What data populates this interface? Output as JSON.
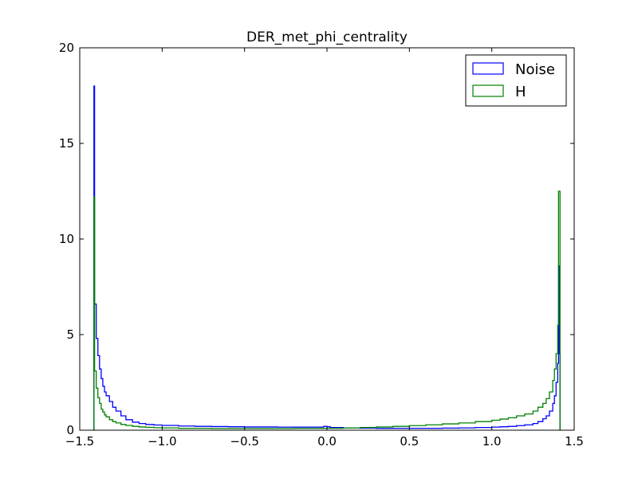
{
  "chart_data": {
    "type": "line",
    "title": "DER_met_phi_centrality",
    "xlabel": "",
    "ylabel": "",
    "xlim": [
      -1.5,
      1.5
    ],
    "ylim": [
      0,
      20
    ],
    "x_ticks": [
      -1.5,
      -1.0,
      -0.5,
      0.0,
      0.5,
      1.0,
      1.5
    ],
    "x_tick_labels": [
      "−1.5",
      "−1.0",
      "−0.5",
      "0.0",
      "0.5",
      "1.0",
      "1.5"
    ],
    "y_ticks": [
      0,
      5,
      10,
      15,
      20
    ],
    "y_tick_labels": [
      "0",
      "5",
      "10",
      "15",
      "20"
    ],
    "grid": false,
    "legend_position": "top-right",
    "histogram_style": "step",
    "series": [
      {
        "name": "Noise",
        "color": "#0000ff",
        "x": [
          -1.414,
          -1.41,
          -1.4,
          -1.39,
          -1.38,
          -1.37,
          -1.36,
          -1.35,
          -1.34,
          -1.32,
          -1.3,
          -1.28,
          -1.25,
          -1.22,
          -1.18,
          -1.14,
          -1.1,
          -1.05,
          -1.0,
          -0.9,
          -0.8,
          -0.7,
          -0.6,
          -0.5,
          -0.4,
          -0.3,
          -0.2,
          -0.1,
          -0.02,
          0.0,
          0.02,
          0.1,
          0.2,
          0.3,
          0.4,
          0.5,
          0.6,
          0.7,
          0.8,
          0.9,
          1.0,
          1.05,
          1.1,
          1.15,
          1.2,
          1.25,
          1.28,
          1.31,
          1.33,
          1.35,
          1.37,
          1.38,
          1.39,
          1.4,
          1.405,
          1.41,
          1.414
        ],
        "y": [
          18.0,
          6.6,
          4.8,
          3.9,
          3.2,
          2.7,
          2.3,
          2.0,
          1.8,
          1.5,
          1.2,
          1.0,
          0.75,
          0.55,
          0.42,
          0.35,
          0.3,
          0.27,
          0.25,
          0.22,
          0.2,
          0.19,
          0.18,
          0.17,
          0.17,
          0.16,
          0.16,
          0.16,
          0.2,
          0.18,
          0.14,
          0.12,
          0.11,
          0.1,
          0.1,
          0.1,
          0.1,
          0.11,
          0.12,
          0.14,
          0.16,
          0.18,
          0.2,
          0.24,
          0.28,
          0.35,
          0.45,
          0.6,
          0.75,
          1.0,
          1.4,
          1.8,
          2.5,
          3.5,
          8.6,
          4.0,
          0.0
        ]
      },
      {
        "name": "H",
        "color": "#008000",
        "x": [
          -1.414,
          -1.41,
          -1.4,
          -1.39,
          -1.38,
          -1.37,
          -1.36,
          -1.35,
          -1.34,
          -1.32,
          -1.3,
          -1.28,
          -1.25,
          -1.22,
          -1.18,
          -1.14,
          -1.1,
          -1.05,
          -1.0,
          -0.9,
          -0.8,
          -0.7,
          -0.6,
          -0.5,
          -0.4,
          -0.3,
          -0.2,
          -0.1,
          0.0,
          0.1,
          0.2,
          0.3,
          0.4,
          0.5,
          0.6,
          0.7,
          0.8,
          0.9,
          1.0,
          1.05,
          1.1,
          1.15,
          1.2,
          1.25,
          1.28,
          1.31,
          1.33,
          1.35,
          1.37,
          1.38,
          1.39,
          1.4,
          1.405,
          1.41,
          1.414
        ],
        "y": [
          12.2,
          3.1,
          2.2,
          1.7,
          1.4,
          1.1,
          0.95,
          0.8,
          0.7,
          0.55,
          0.45,
          0.38,
          0.3,
          0.25,
          0.2,
          0.17,
          0.15,
          0.13,
          0.12,
          0.1,
          0.1,
          0.09,
          0.09,
          0.09,
          0.09,
          0.09,
          0.1,
          0.1,
          0.1,
          0.12,
          0.14,
          0.17,
          0.2,
          0.24,
          0.28,
          0.33,
          0.38,
          0.45,
          0.52,
          0.58,
          0.65,
          0.75,
          0.85,
          1.0,
          1.2,
          1.4,
          1.65,
          2.0,
          2.6,
          3.2,
          4.0,
          5.5,
          12.5,
          12.5,
          0.0
        ]
      }
    ]
  }
}
